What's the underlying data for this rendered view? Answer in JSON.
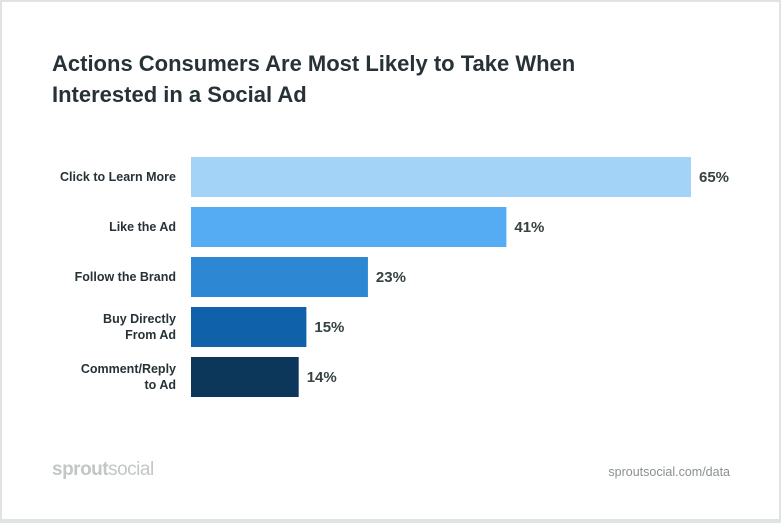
{
  "chart_data": {
    "type": "bar",
    "orientation": "horizontal",
    "title": "Actions Consumers Are Most Likely to Take When Interested in a Social Ad",
    "categories": [
      [
        "Click to Learn More"
      ],
      [
        "Like the Ad"
      ],
      [
        "Follow the Brand"
      ],
      [
        "Buy Directly",
        "From Ad"
      ],
      [
        "Comment/Reply",
        "to Ad"
      ]
    ],
    "values": [
      65,
      41,
      23,
      15,
      14
    ],
    "value_labels": [
      "65%",
      "41%",
      "23%",
      "15%",
      "14%"
    ],
    "colors": [
      "#a3d3f7",
      "#56acf3",
      "#2d87d3",
      "#0f61a9",
      "#0c375b"
    ],
    "xlim": [
      0,
      65
    ],
    "grid": false,
    "xlabel": "",
    "ylabel": ""
  },
  "footer": {
    "logo_bold": "sprout",
    "logo_light": "social",
    "url": "sproutsocial.com/data"
  }
}
